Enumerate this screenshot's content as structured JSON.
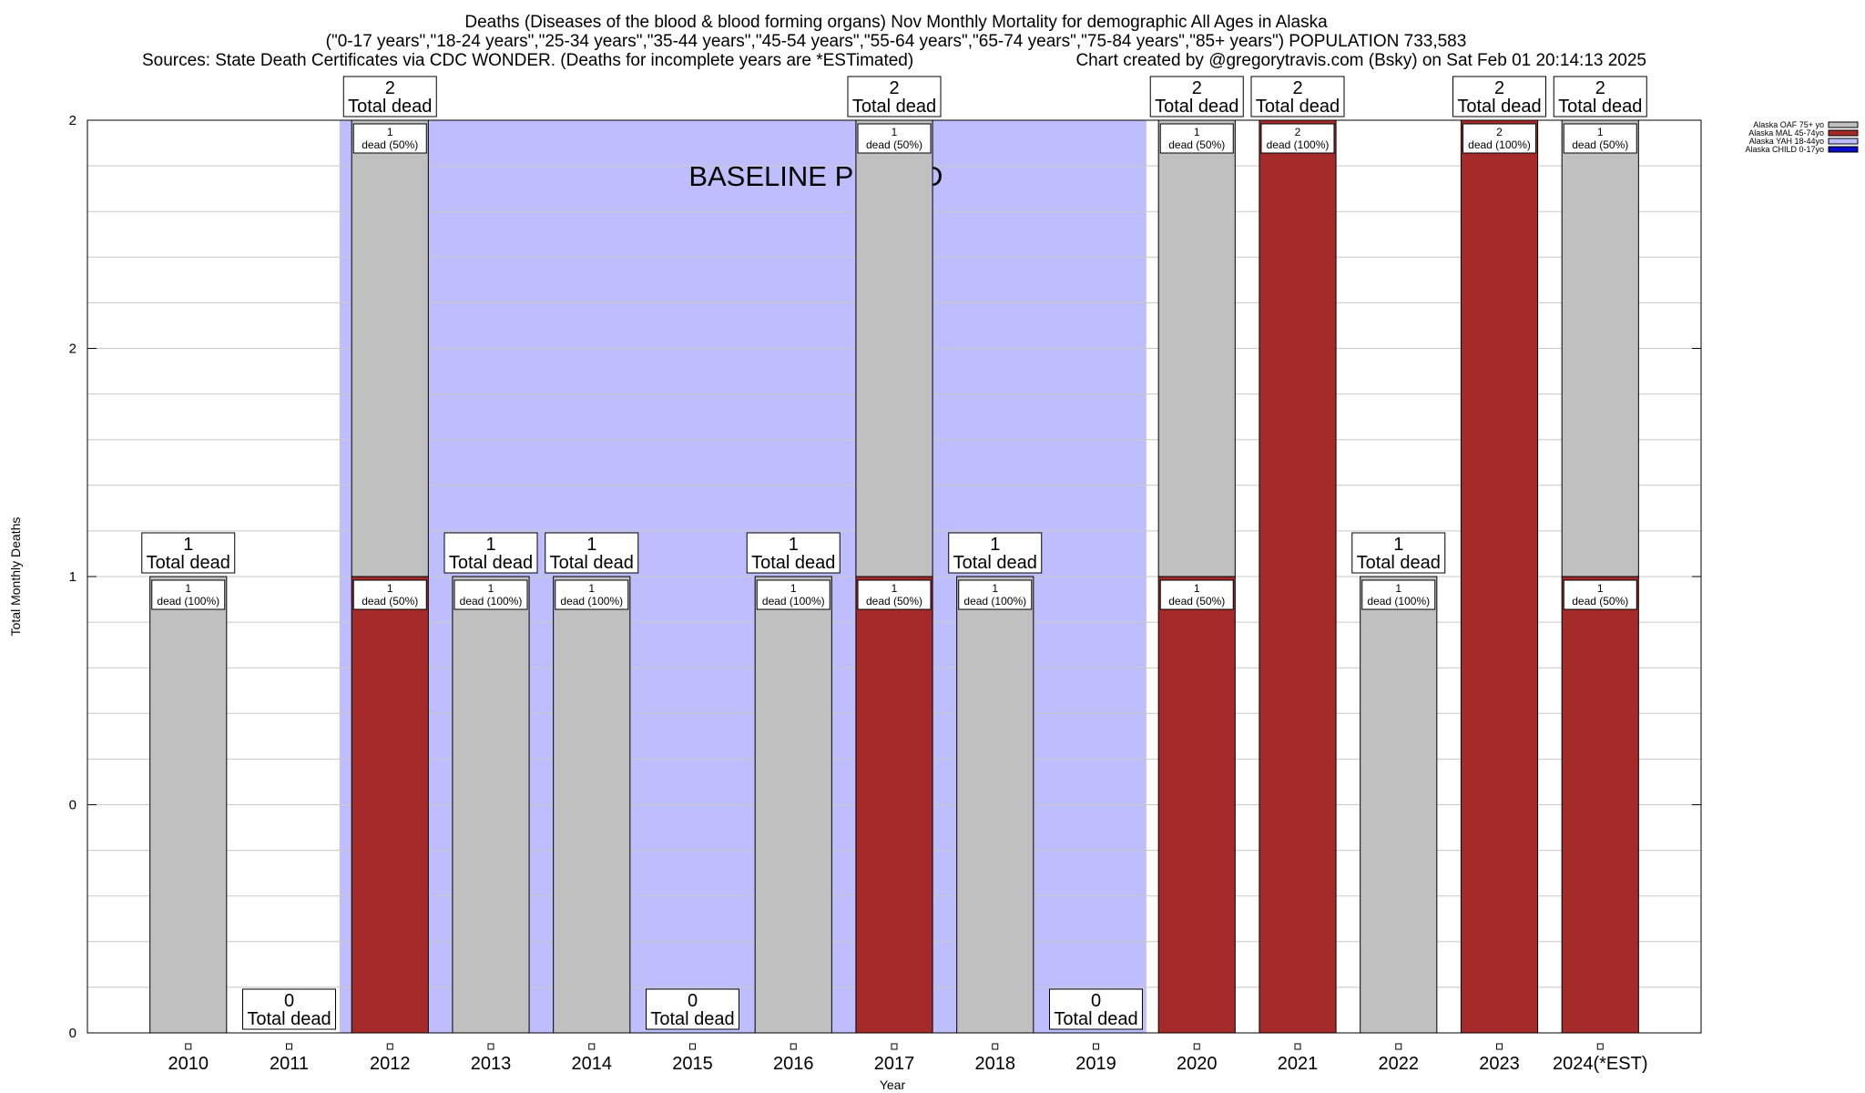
{
  "chart_data": {
    "type": "bar",
    "stacked": true,
    "title_lines": [
      "Deaths (Diseases of the blood & blood forming organs) Nov Monthly Mortality for demographic All Ages in Alaska",
      "(\"0-17 years\",\"18-24 years\",\"25-34 years\",\"35-44 years\",\"45-54 years\",\"55-64 years\",\"65-74 years\",\"75-84 years\",\"85+ years\") POPULATION 733,583",
      "Sources: State Death Certificates via CDC WONDER. (Deaths for incomplete years are *ESTimated)"
    ],
    "credit": "Chart created by @gregorytravis.com (Bsky) on Sat Feb 01 20:14:13 2025",
    "xlabel": "Year",
    "ylabel": "Total Monthly Deaths",
    "ylim": [
      0,
      2
    ],
    "ytick_labels": [
      "0",
      "0",
      "1",
      "2",
      "2"
    ],
    "grid": true,
    "baseline_period": {
      "label": "BASELINE PERIOD",
      "from": "2012",
      "to": "2019"
    },
    "legend_position": "top-right",
    "categories": [
      "2010",
      "2011",
      "2012",
      "2013",
      "2014",
      "2015",
      "2016",
      "2017",
      "2018",
      "2019",
      "2020",
      "2021",
      "2022",
      "2023",
      "2024(*EST)"
    ],
    "series": [
      {
        "name": "Alaska CHILD 0-17yo",
        "color": "#0a0ac8",
        "values": [
          0,
          0,
          0,
          0,
          0,
          0,
          0,
          0,
          0,
          0,
          0,
          0,
          0,
          0,
          0
        ]
      },
      {
        "name": "Alaska YAH 18-44yo",
        "color": "#bebeff",
        "values": [
          0,
          0,
          0,
          0,
          0,
          0,
          0,
          0,
          0,
          0,
          0,
          0,
          0,
          0,
          0
        ]
      },
      {
        "name": "Alaska MAL 45-74yo",
        "color": "#a52a2a",
        "values": [
          0,
          0,
          1,
          0,
          0,
          0,
          0,
          1,
          0,
          0,
          1,
          2,
          0,
          2,
          1
        ]
      },
      {
        "name": "Alaska OAF 75+ yo",
        "color": "#c0c0c0",
        "values": [
          1,
          0,
          1,
          1,
          1,
          0,
          1,
          1,
          1,
          0,
          1,
          0,
          1,
          0,
          1
        ]
      }
    ],
    "totals": [
      1,
      0,
      2,
      1,
      1,
      0,
      1,
      2,
      1,
      0,
      2,
      2,
      1,
      2,
      2
    ],
    "total_suffix": "Total dead",
    "segment_suffix": "dead"
  }
}
